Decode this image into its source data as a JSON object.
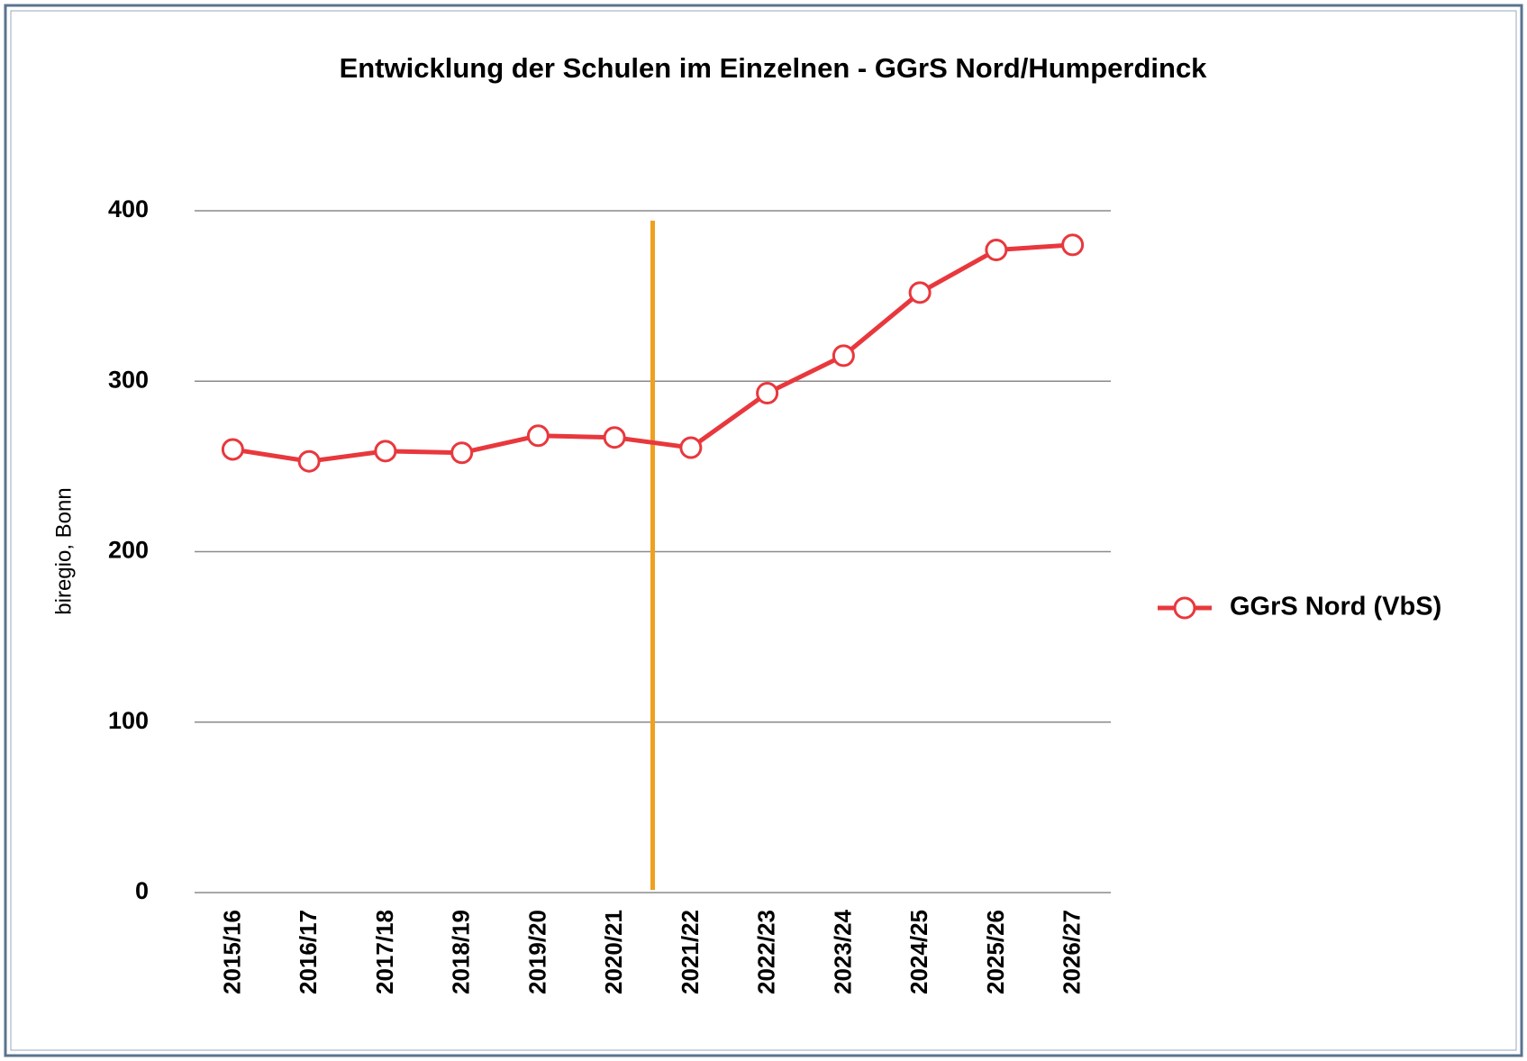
{
  "chart_data": {
    "type": "line",
    "title": "Entwicklung der Schulen im Einzelnen - GGrS Nord/Humperdinck",
    "y_label": "biregio, Bonn",
    "categories": [
      "2015/16",
      "2016/17",
      "2017/18",
      "2018/19",
      "2019/20",
      "2020/21",
      "2021/22",
      "2022/23",
      "2023/24",
      "2024/25",
      "2025/26",
      "2026/27"
    ],
    "series": [
      {
        "name": "GGrS Nord (VbS)",
        "color": "#e8383d",
        "values": [
          260,
          253,
          259,
          258,
          268,
          267,
          261,
          293,
          315,
          352,
          377,
          380
        ]
      }
    ],
    "ylim": [
      0,
      400
    ],
    "yticks": [
      0,
      100,
      200,
      300,
      400
    ],
    "grid": true,
    "legend": "right"
  }
}
